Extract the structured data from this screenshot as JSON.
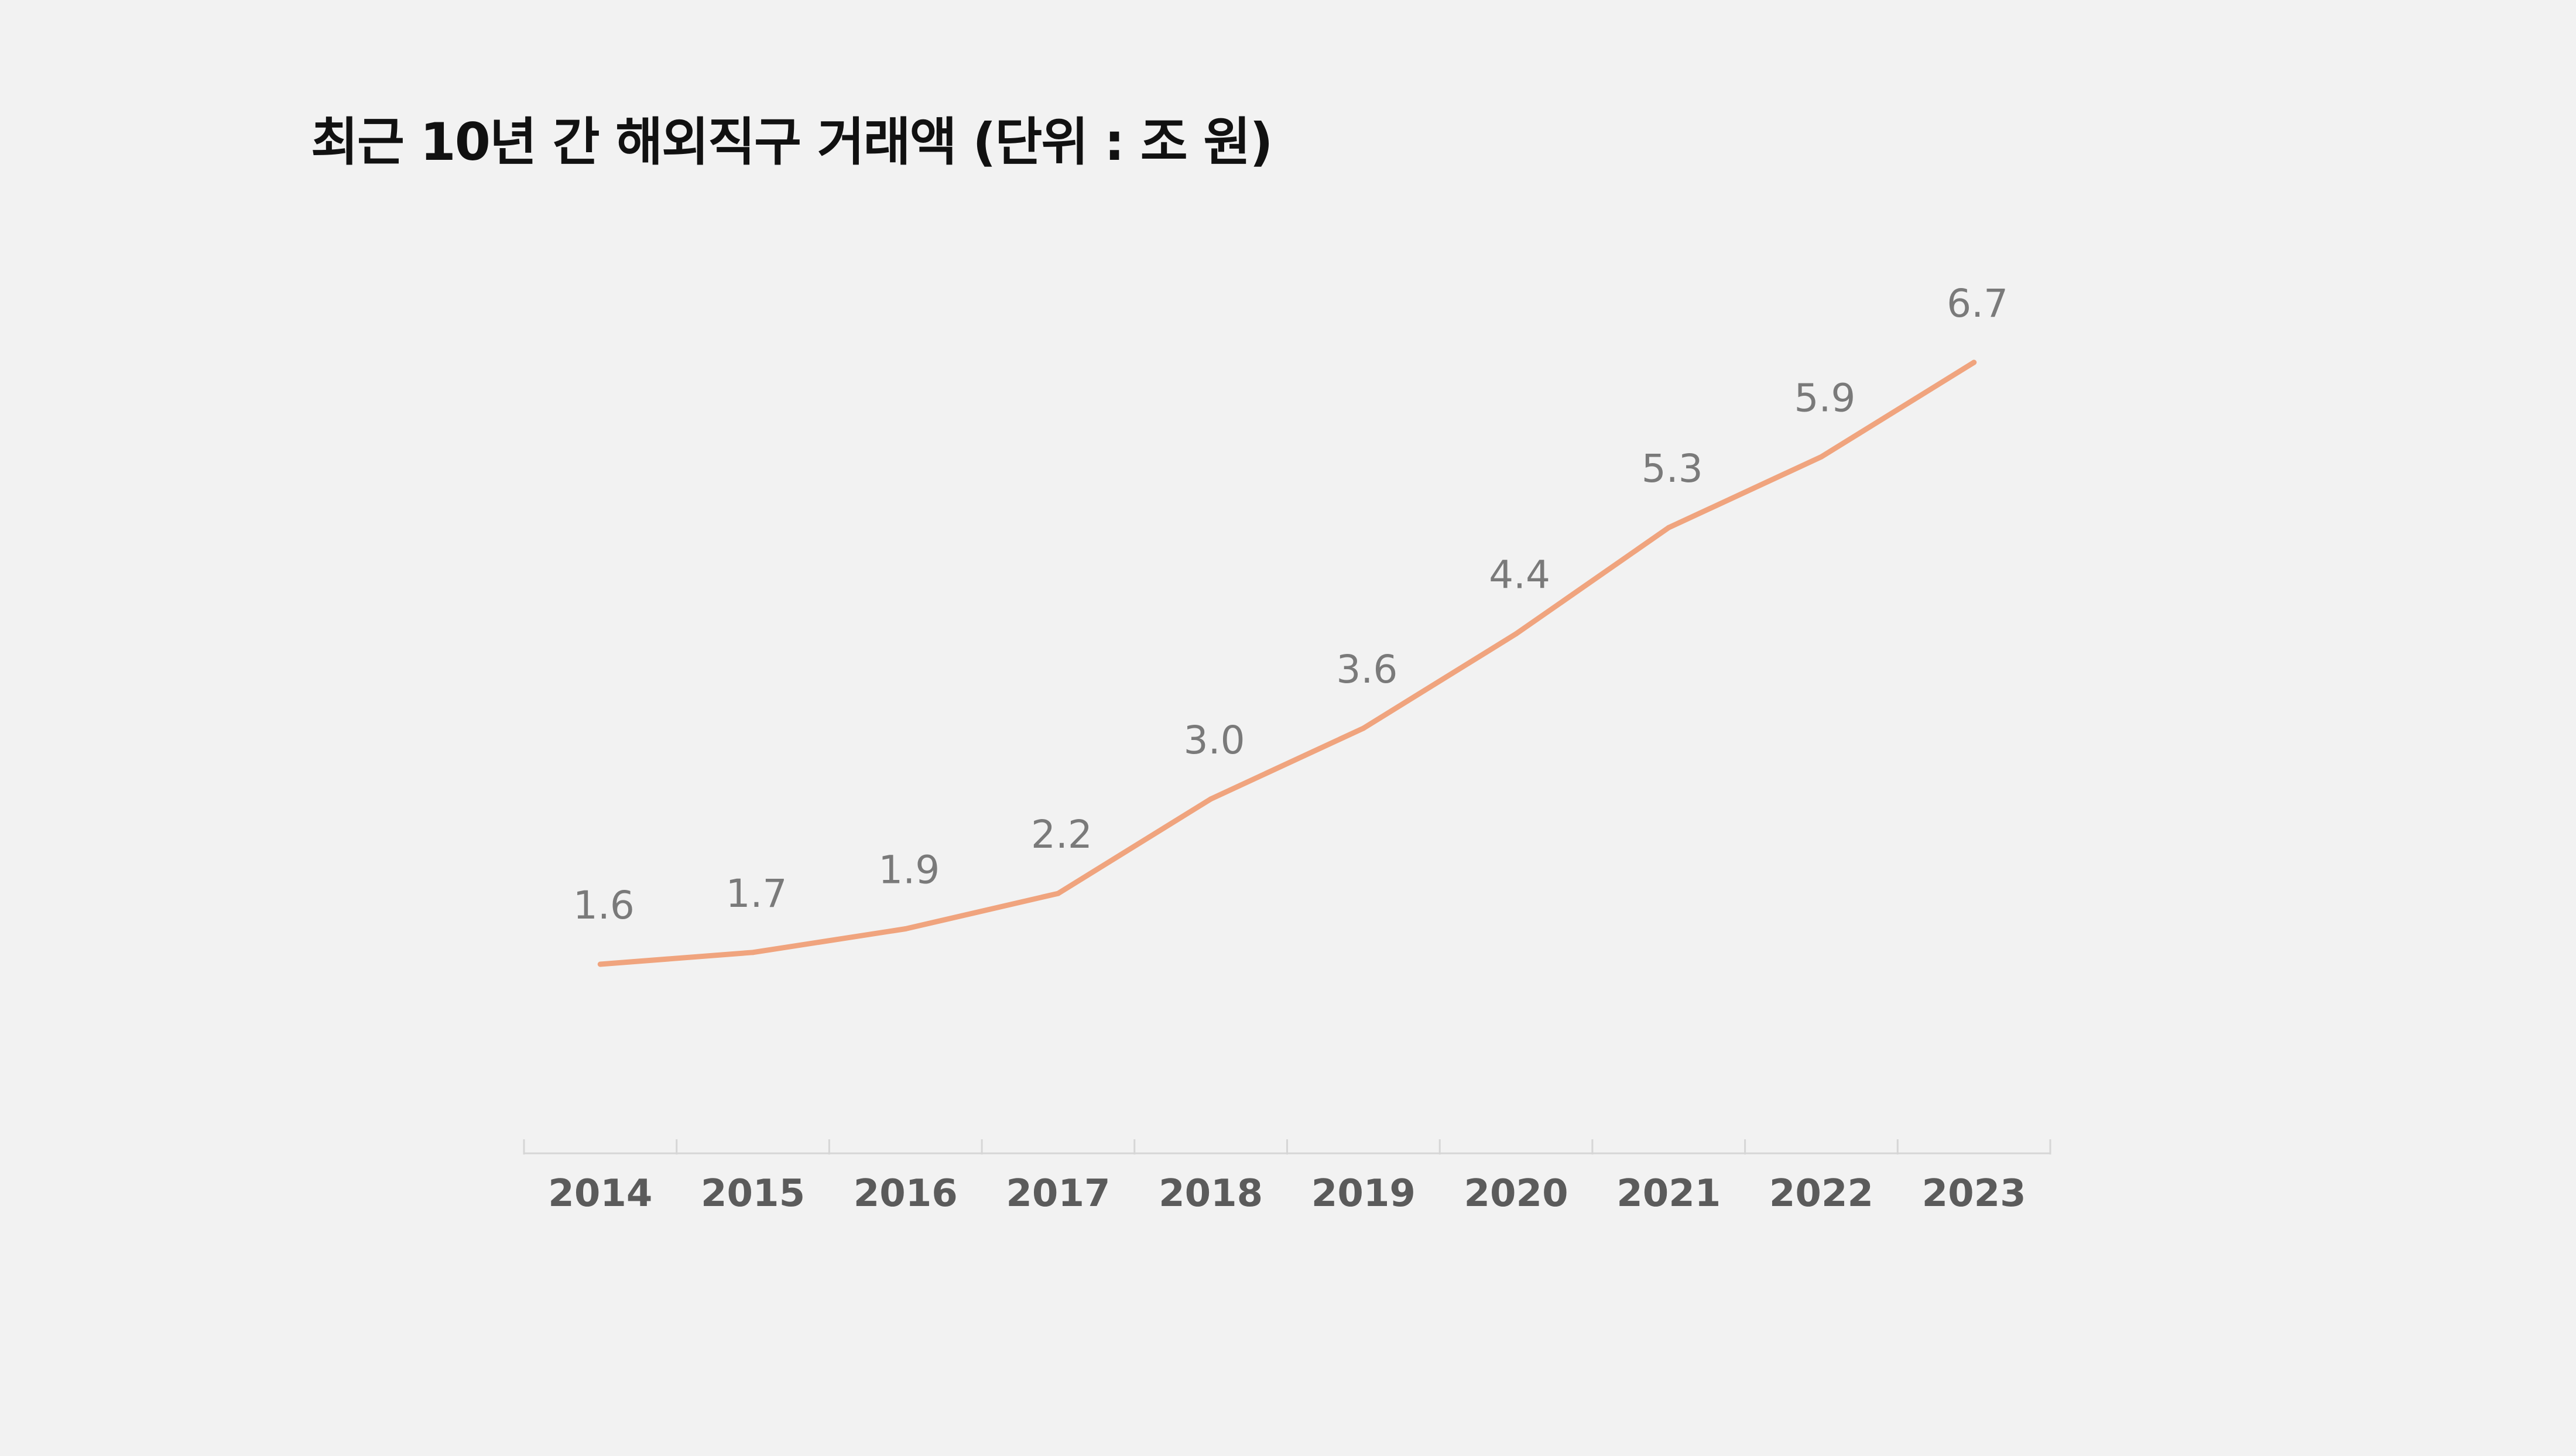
{
  "chart_data": {
    "type": "line",
    "title": "최근 10년 간 해외직구 거래액 (단위 : 조 원)",
    "categories": [
      "2014",
      "2015",
      "2016",
      "2017",
      "2018",
      "2019",
      "2020",
      "2021",
      "2022",
      "2023"
    ],
    "values": [
      1.6,
      1.7,
      1.9,
      2.2,
      3.0,
      3.6,
      4.4,
      5.3,
      5.9,
      6.7
    ],
    "data_labels": [
      "1.6",
      "1.7",
      "1.9",
      "2.2",
      "3.0",
      "3.6",
      "4.4",
      "5.3",
      "5.9",
      "6.7"
    ],
    "xlabel": "",
    "ylabel": "",
    "ylim": [
      0,
      7.5
    ],
    "grid": false,
    "legend": "none",
    "line_color": "#f0a47e",
    "axis_color": "#d6d6d6"
  }
}
